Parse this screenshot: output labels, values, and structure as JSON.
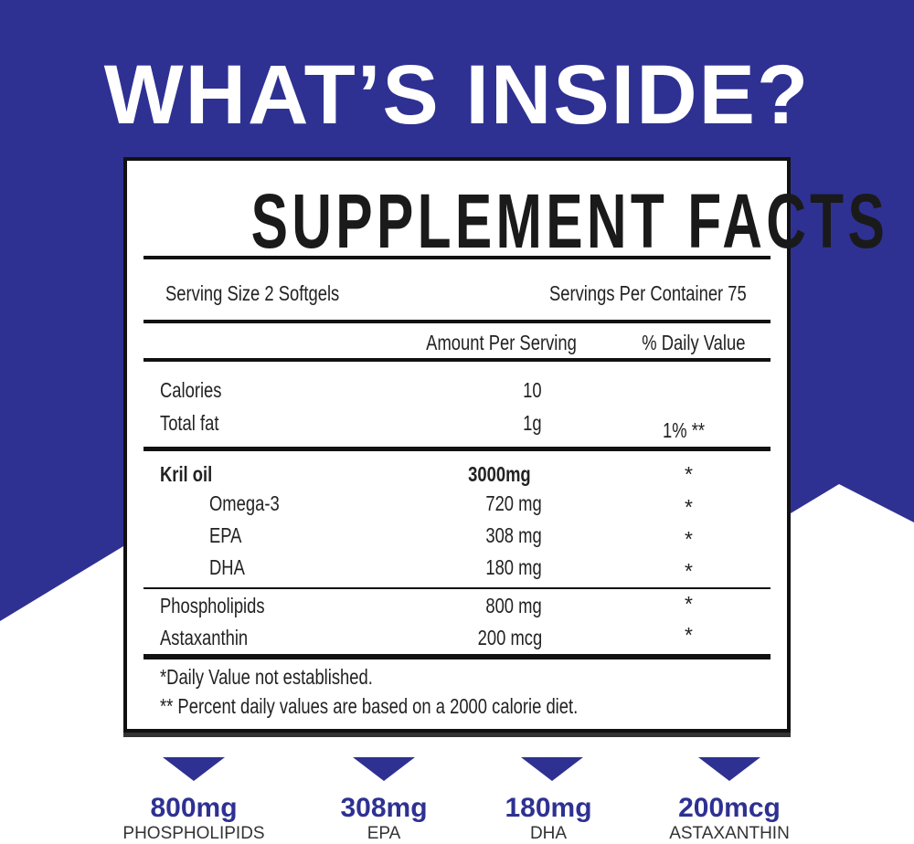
{
  "colors": {
    "brand_blue": "#2e3192",
    "background_white": "#ffffff",
    "text": "#222222"
  },
  "headline": "WHAT’S INSIDE?",
  "facts": {
    "title": "SUPPLEMENT FACTS",
    "serving_size": "Serving Size 2 Softgels",
    "servings_per_container": "Servings Per Container 75",
    "col_amount": "Amount Per Serving",
    "col_daily": "% Daily Value",
    "basic": [
      {
        "name": "Calories",
        "amount": "10",
        "dv": ""
      },
      {
        "name": "Total fat",
        "amount": "1g",
        "dv": "1% **"
      }
    ],
    "main": {
      "name": "Kril oil",
      "amount": "3000mg",
      "dv": "*"
    },
    "sub": [
      {
        "name": "Omega-3",
        "amount": "720 mg",
        "dv": "*"
      },
      {
        "name": "EPA",
        "amount": "308 mg",
        "dv": "*"
      },
      {
        "name": "DHA",
        "amount": "180 mg",
        "dv": "*"
      }
    ],
    "other": [
      {
        "name": "Phospholipids",
        "amount": "800 mg",
        "dv": "*"
      },
      {
        "name": "Astaxanthin",
        "amount": "200 mcg",
        "dv": "*"
      }
    ],
    "footnote1": "*Daily Value not established.",
    "footnote2": "** Percent daily values are based on a 2000 calorie diet."
  },
  "highlights": [
    {
      "value": "800mg",
      "label": "PHOSPHOLIPIDS"
    },
    {
      "value": "308mg",
      "label": "EPA"
    },
    {
      "value": "180mg",
      "label": "DHA"
    },
    {
      "value": "200mcg",
      "label": "ASTAXANTHIN"
    }
  ]
}
